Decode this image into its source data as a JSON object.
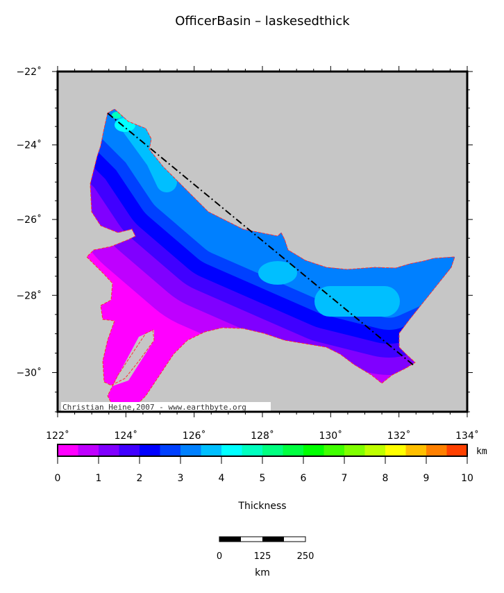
{
  "title": "OfficerBasin – laskesedthick",
  "map": {
    "lon_range": [
      122,
      134
    ],
    "lat_range": [
      -31,
      -22
    ],
    "lon_labels": [
      "122˚",
      "124˚",
      "126˚",
      "128˚",
      "130˚",
      "132˚",
      "134˚"
    ],
    "lat_labels": [
      "−22˚",
      "−24˚",
      "−26˚",
      "−28˚",
      "−30˚"
    ],
    "background_color": "#c6c6c6",
    "outline_color": "#ff3030",
    "credit": "Christian Heine,2007 - www.earthbyte.org"
  },
  "colorbar": {
    "unit": "km",
    "labels": [
      "0",
      "1",
      "2",
      "3",
      "4",
      "5",
      "6",
      "7",
      "8",
      "9",
      "10"
    ],
    "colors": [
      "#ff00ff",
      "#bf00ff",
      "#8000ff",
      "#4000ff",
      "#0000ff",
      "#0040ff",
      "#0080ff",
      "#00bfff",
      "#00ffff",
      "#00ffbf",
      "#00ff80",
      "#00ff40",
      "#00ff00",
      "#40ff00",
      "#80ff00",
      "#bfff00",
      "#ffff00",
      "#ffbf00",
      "#ff8000",
      "#ff4000"
    ],
    "title": "Thickness"
  },
  "scalebar": {
    "labels": [
      "0",
      "125",
      "250"
    ],
    "unit": "km"
  }
}
